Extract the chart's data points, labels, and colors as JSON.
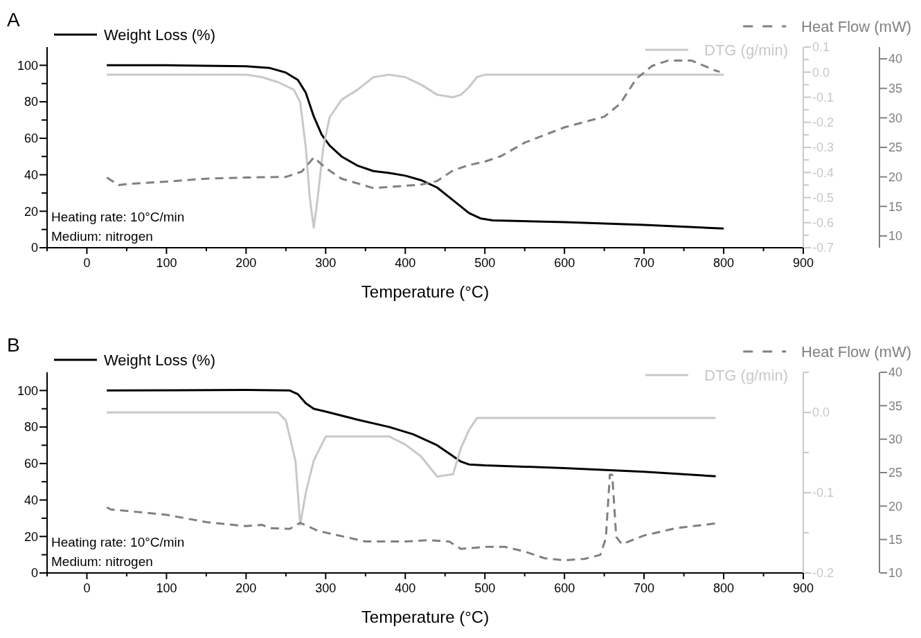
{
  "chart_data": [
    {
      "type": "line",
      "title": "A",
      "xlabel": "Temperature (°C)",
      "xlim": [
        -50,
        900
      ],
      "xticks": [
        {
          "value": -50,
          "label": null
        },
        0,
        {
          "value": 50,
          "label": null
        },
        100,
        {
          "value": 150,
          "label": null
        },
        200,
        {
          "value": 250,
          "label": null
        },
        300,
        {
          "value": 350,
          "label": null
        },
        400,
        {
          "value": 450,
          "label": null
        },
        500,
        {
          "value": 550,
          "label": null
        },
        600,
        {
          "value": 650,
          "label": null
        },
        700,
        {
          "value": 750,
          "label": null
        },
        800,
        {
          "value": 850,
          "label": null
        },
        900
      ],
      "ylim": [
        0,
        110
      ],
      "yticks": [
        0,
        {
          "value": 10,
          "label": null
        },
        20,
        {
          "value": 30,
          "label": null
        },
        40,
        {
          "value": 50,
          "label": null
        },
        60,
        {
          "value": 70,
          "label": null
        },
        80,
        {
          "value": 90,
          "label": null
        },
        100
      ],
      "y2lim": [
        -0.7,
        0.1
      ],
      "y2ticks": [
        -0.7,
        {
          "value": -0.65,
          "label": null
        },
        -0.6,
        {
          "value": -0.55,
          "label": null
        },
        -0.5,
        {
          "value": -0.45,
          "label": null
        },
        -0.4,
        {
          "value": -0.35,
          "label": null
        },
        -0.3,
        {
          "value": -0.25,
          "label": null
        },
        -0.2,
        {
          "value": -0.15,
          "label": null
        },
        -0.1,
        {
          "value": -0.05,
          "label": null
        },
        {
          "value": 0,
          "label": "0.0"
        },
        {
          "value": 0.05,
          "label": null
        },
        0.1
      ],
      "y3lim": [
        8,
        42
      ],
      "y3ticks": [
        10,
        15,
        20,
        25,
        30,
        35,
        40
      ],
      "legend": "top",
      "annotations": [
        "Heating rate: 10°C/min",
        "Medium: nitrogen"
      ],
      "series": [
        {
          "name": "Weight Loss (%)",
          "color": "#000000",
          "line_style": "solid",
          "axis": "y",
          "x": [
            25,
            100,
            200,
            230,
            250,
            265,
            275,
            285,
            295,
            305,
            320,
            340,
            360,
            380,
            400,
            420,
            440,
            460,
            480,
            495,
            510,
            600,
            700,
            800
          ],
          "values": [
            100,
            100,
            99.5,
            98.5,
            96,
            92,
            85,
            72,
            62,
            56,
            50,
            45,
            42,
            41,
            39.5,
            37,
            33,
            26,
            19,
            16,
            15,
            14,
            12.5,
            10.5
          ]
        },
        {
          "name": "DTG (g/min)",
          "color": "#c8c8c8",
          "line_style": "solid",
          "axis": "y2",
          "x": [
            25,
            200,
            220,
            240,
            260,
            268,
            275,
            280,
            285,
            290,
            297,
            305,
            320,
            340,
            360,
            380,
            400,
            420,
            440,
            460,
            470,
            480,
            490,
            500,
            800
          ],
          "values": [
            -0.01,
            -0.01,
            -0.02,
            -0.04,
            -0.07,
            -0.12,
            -0.3,
            -0.5,
            -0.62,
            -0.5,
            -0.3,
            -0.18,
            -0.11,
            -0.07,
            -0.02,
            -0.01,
            -0.02,
            -0.05,
            -0.09,
            -0.1,
            -0.09,
            -0.06,
            -0.02,
            -0.01,
            -0.01
          ]
        },
        {
          "name": "Heat Flow (mW)",
          "color": "#808080",
          "line_style": "dashed",
          "axis": "y3",
          "x": [
            25,
            40,
            50,
            100,
            150,
            200,
            250,
            270,
            285,
            300,
            320,
            360,
            380,
            420,
            440,
            460,
            480,
            500,
            520,
            550,
            600,
            650,
            670,
            690,
            710,
            730,
            760,
            790,
            795
          ],
          "values": [
            19.9,
            18.6,
            18.8,
            19.2,
            19.7,
            19.9,
            20,
            20.9,
            23.3,
            21.5,
            19.7,
            18.1,
            18.3,
            18.7,
            19.3,
            21.1,
            22,
            22.6,
            23.5,
            25.8,
            28.4,
            30.2,
            32.4,
            36.6,
            38.8,
            39.7,
            39.7,
            38,
            37.8
          ]
        }
      ]
    },
    {
      "type": "line",
      "title": "B",
      "xlabel": "Temperature (°C)",
      "xlim": [
        -50,
        900
      ],
      "xticks": [
        {
          "value": -50,
          "label": null
        },
        0,
        {
          "value": 50,
          "label": null
        },
        100,
        {
          "value": 150,
          "label": null
        },
        200,
        {
          "value": 250,
          "label": null
        },
        300,
        {
          "value": 350,
          "label": null
        },
        400,
        {
          "value": 450,
          "label": null
        },
        500,
        {
          "value": 550,
          "label": null
        },
        600,
        {
          "value": 650,
          "label": null
        },
        700,
        {
          "value": 750,
          "label": null
        },
        800,
        {
          "value": 850,
          "label": null
        },
        900
      ],
      "ylim": [
        0,
        110
      ],
      "yticks": [
        0,
        {
          "value": 10,
          "label": null
        },
        20,
        {
          "value": 30,
          "label": null
        },
        40,
        {
          "value": 50,
          "label": null
        },
        60,
        {
          "value": 70,
          "label": null
        },
        80,
        {
          "value": 90,
          "label": null
        },
        100
      ],
      "y2lim": [
        -0.2,
        0.05
      ],
      "y2ticks": [
        -0.2,
        {
          "value": -0.15,
          "label": null
        },
        -0.1,
        {
          "value": -0.05,
          "label": null
        },
        {
          "value": 0,
          "label": "0.0"
        },
        {
          "value": 0.05,
          "label": null
        }
      ],
      "y3lim": [
        10,
        40
      ],
      "y3ticks": [
        10,
        15,
        20,
        25,
        30,
        35,
        40
      ],
      "legend": "top",
      "annotations": [
        "Heating rate: 10°C/min",
        "Medium: nitrogen"
      ],
      "series": [
        {
          "name": "Weight Loss (%)",
          "color": "#000000",
          "line_style": "solid",
          "axis": "y",
          "x": [
            25,
            200,
            255,
            265,
            275,
            285,
            300,
            340,
            380,
            410,
            440,
            460,
            470,
            480,
            500,
            600,
            700,
            790
          ],
          "values": [
            100,
            100.3,
            100,
            98,
            93,
            90,
            88.5,
            84,
            80,
            76,
            70,
            64,
            61,
            59.5,
            59,
            57.5,
            55.5,
            53
          ]
        },
        {
          "name": "DTG (g/min)",
          "color": "#c8c8c8",
          "line_style": "solid",
          "axis": "y2",
          "x": [
            25,
            240,
            250,
            262,
            268,
            275,
            285,
            300,
            380,
            400,
            420,
            440,
            460,
            470,
            480,
            490,
            790
          ],
          "values": [
            0,
            0,
            -0.01,
            -0.06,
            -0.14,
            -0.1,
            -0.06,
            -0.03,
            -0.03,
            -0.04,
            -0.055,
            -0.08,
            -0.077,
            -0.044,
            -0.022,
            -0.007,
            -0.007
          ]
        },
        {
          "name": "Heat Flow (mW)",
          "color": "#808080",
          "line_style": "dashed",
          "axis": "y3",
          "x": [
            25,
            30,
            100,
            150,
            200,
            220,
            230,
            255,
            268,
            290,
            350,
            400,
            430,
            455,
            470,
            500,
            525,
            550,
            575,
            600,
            625,
            645,
            652,
            657,
            660,
            665,
            672,
            700,
            740,
            790
          ],
          "values": [
            19.8,
            19.5,
            18.7,
            17.6,
            17,
            17.2,
            16.7,
            16.6,
            17.5,
            16.3,
            14.7,
            14.7,
            14.9,
            14.7,
            13.6,
            13.9,
            13.9,
            13.2,
            12.2,
            11.9,
            12.1,
            12.7,
            15.2,
            24.7,
            24.7,
            15.4,
            14.3,
            15.6,
            16.7,
            17.4
          ]
        }
      ]
    }
  ]
}
